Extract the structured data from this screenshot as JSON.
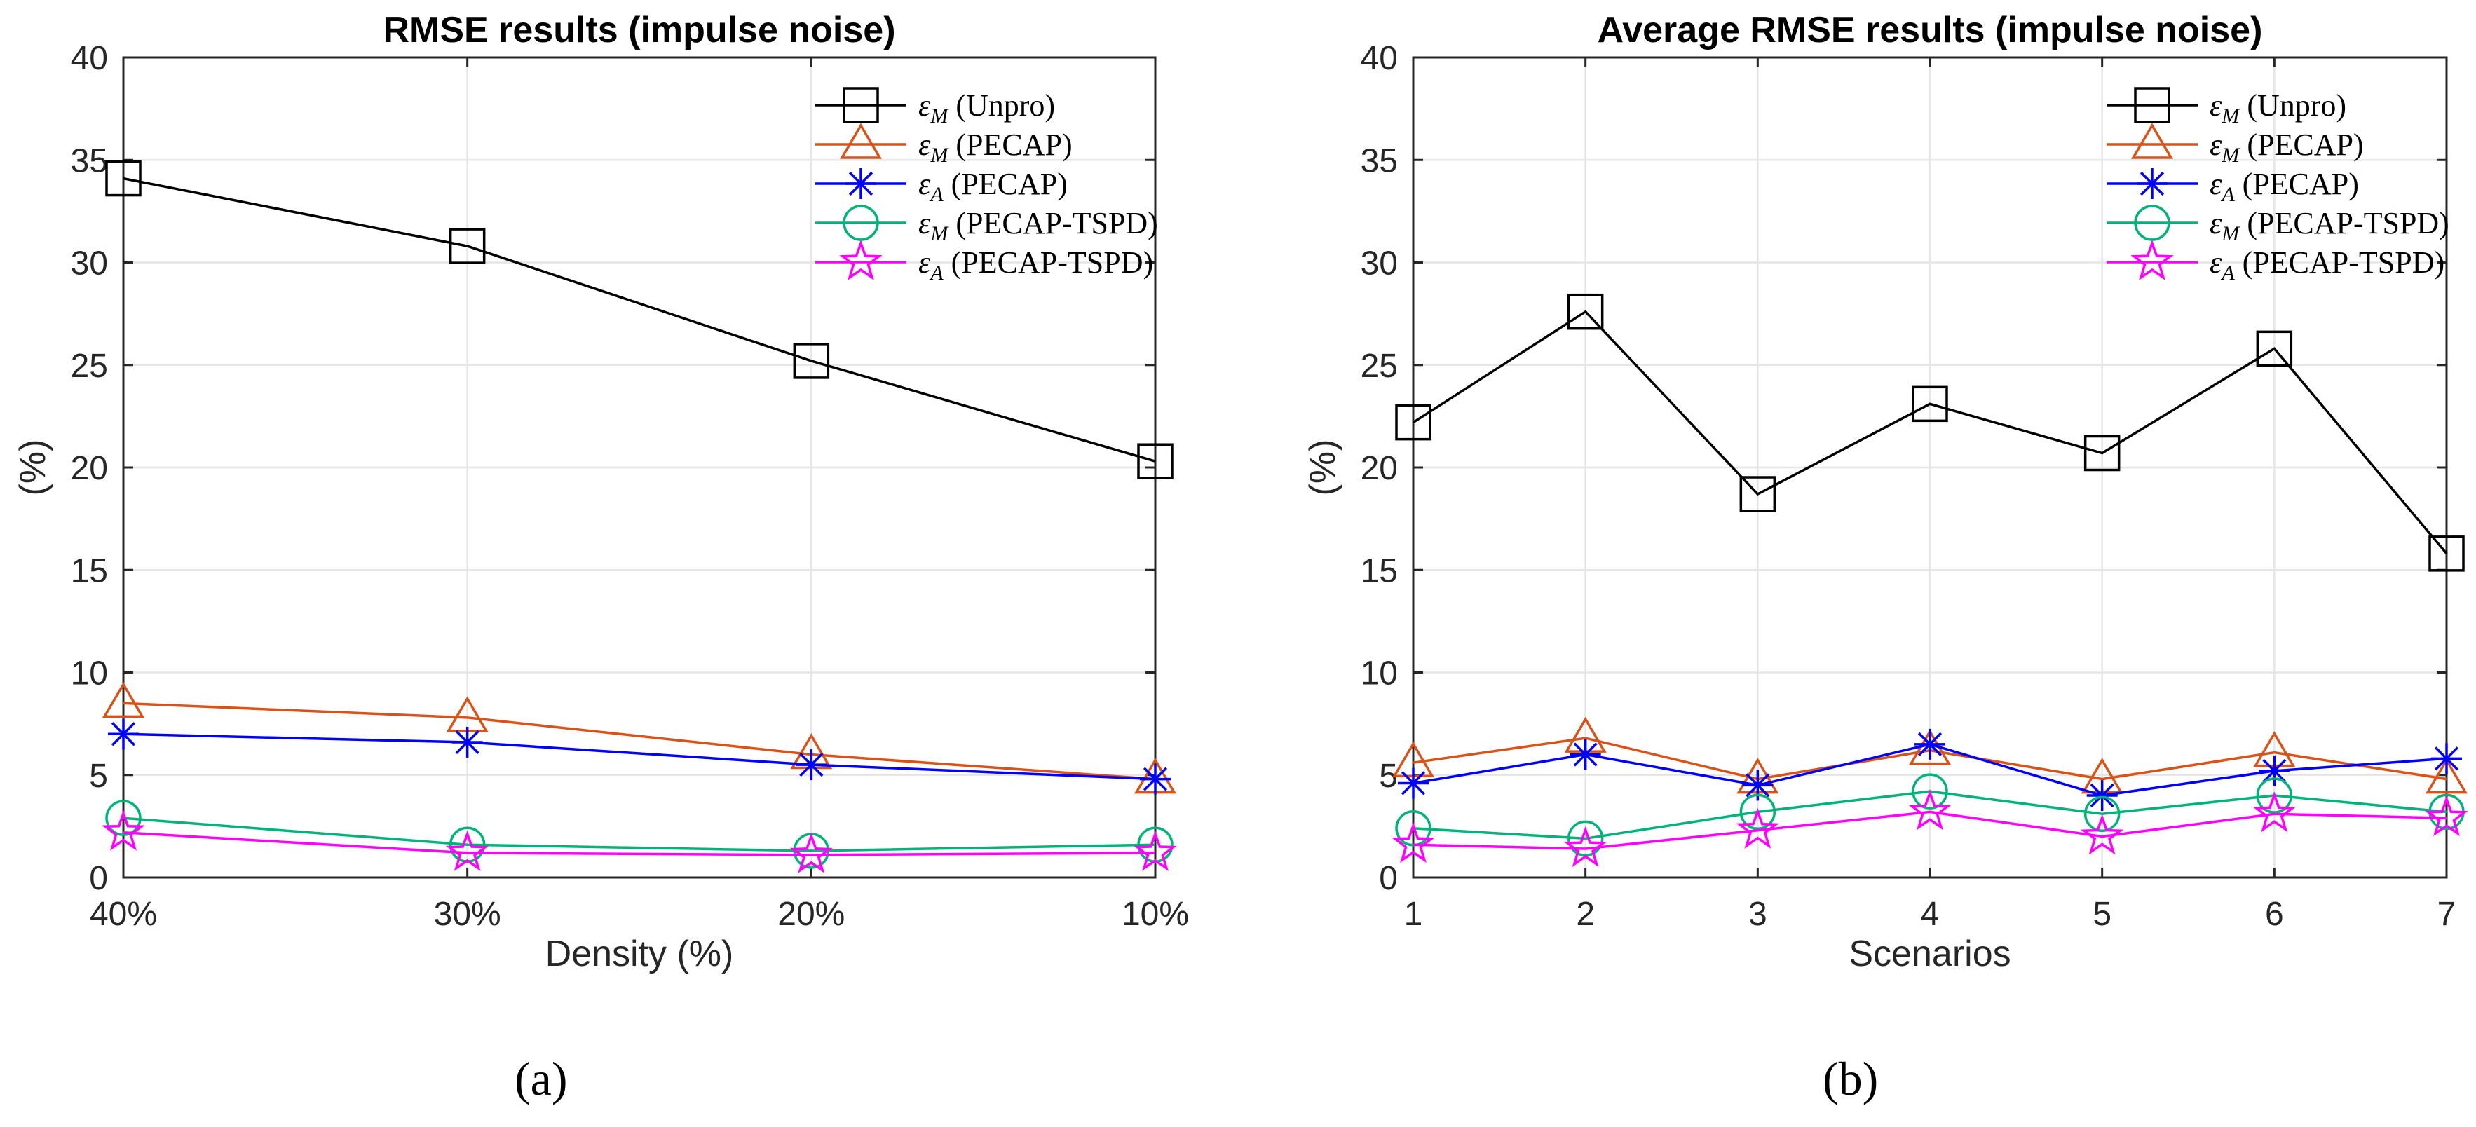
{
  "chart_data": [
    {
      "type": "line",
      "title": "RMSE results (impulse noise)",
      "xlabel": "Density (%)",
      "ylabel": "(%)",
      "categories": [
        "40%",
        "30%",
        "20%",
        "10%"
      ],
      "ylim": [
        0,
        40
      ],
      "yticks": [
        0,
        5,
        10,
        15,
        20,
        25,
        30,
        35,
        40
      ],
      "grid": true,
      "legend_position": "top-right",
      "caption": "(a)",
      "series": [
        {
          "name": "εM (Unpro)",
          "symbol": "ε",
          "sub": "M",
          "method": "(Unpro)",
          "color": "#000000",
          "marker": "square",
          "values": [
            34.1,
            30.8,
            25.2,
            20.3
          ]
        },
        {
          "name": "εM (PECAP)",
          "symbol": "ε",
          "sub": "M",
          "method": "(PECAP)",
          "color": "#D95319",
          "marker": "triangle",
          "values": [
            8.5,
            7.8,
            6.0,
            4.8
          ]
        },
        {
          "name": "εA (PECAP)",
          "symbol": "ε",
          "sub": "A",
          "method": "(PECAP)",
          "color": "#0000FF",
          "marker": "asterisk",
          "values": [
            7.0,
            6.6,
            5.5,
            4.8
          ]
        },
        {
          "name": "εM (PECAP-TSPD)",
          "symbol": "ε",
          "sub": "M",
          "method": "(PECAP-TSPD)",
          "color": "#00B37A",
          "marker": "circle",
          "values": [
            2.9,
            1.6,
            1.3,
            1.6
          ]
        },
        {
          "name": "εA (PECAP-TSPD)",
          "symbol": "ε",
          "sub": "A",
          "method": "(PECAP-TSPD)",
          "color": "#FF00FF",
          "marker": "star",
          "values": [
            2.2,
            1.2,
            1.1,
            1.2
          ]
        }
      ]
    },
    {
      "type": "line",
      "title": "Average RMSE results (impulse noise)",
      "xlabel": "Scenarios",
      "ylabel": "(%)",
      "categories": [
        "1",
        "2",
        "3",
        "4",
        "5",
        "6",
        "7"
      ],
      "ylim": [
        0,
        40
      ],
      "yticks": [
        0,
        5,
        10,
        15,
        20,
        25,
        30,
        35,
        40
      ],
      "grid": true,
      "legend_position": "top-right",
      "caption": "(b)",
      "series": [
        {
          "name": "εM (Unpro)",
          "symbol": "ε",
          "sub": "M",
          "method": "(Unpro)",
          "color": "#000000",
          "marker": "square",
          "values": [
            22.2,
            27.6,
            18.7,
            23.1,
            20.7,
            25.8,
            15.8
          ]
        },
        {
          "name": "εM (PECAP)",
          "symbol": "ε",
          "sub": "M",
          "method": "(PECAP)",
          "color": "#D95319",
          "marker": "triangle",
          "values": [
            5.6,
            6.8,
            4.8,
            6.2,
            4.8,
            6.1,
            4.8
          ]
        },
        {
          "name": "εA (PECAP)",
          "symbol": "ε",
          "sub": "A",
          "method": "(PECAP)",
          "color": "#0000FF",
          "marker": "asterisk",
          "values": [
            4.6,
            6.0,
            4.5,
            6.5,
            4.0,
            5.2,
            5.8
          ]
        },
        {
          "name": "εM (PECAP-TSPD)",
          "symbol": "ε",
          "sub": "M",
          "method": "(PECAP-TSPD)",
          "color": "#00B37A",
          "marker": "circle",
          "values": [
            2.4,
            1.9,
            3.2,
            4.2,
            3.1,
            4.0,
            3.2
          ]
        },
        {
          "name": "εA (PECAP-TSPD)",
          "symbol": "ε",
          "sub": "A",
          "method": "(PECAP-TSPD)",
          "color": "#FF00FF",
          "marker": "star",
          "values": [
            1.6,
            1.4,
            2.3,
            3.2,
            2.0,
            3.1,
            2.9
          ]
        }
      ]
    }
  ]
}
